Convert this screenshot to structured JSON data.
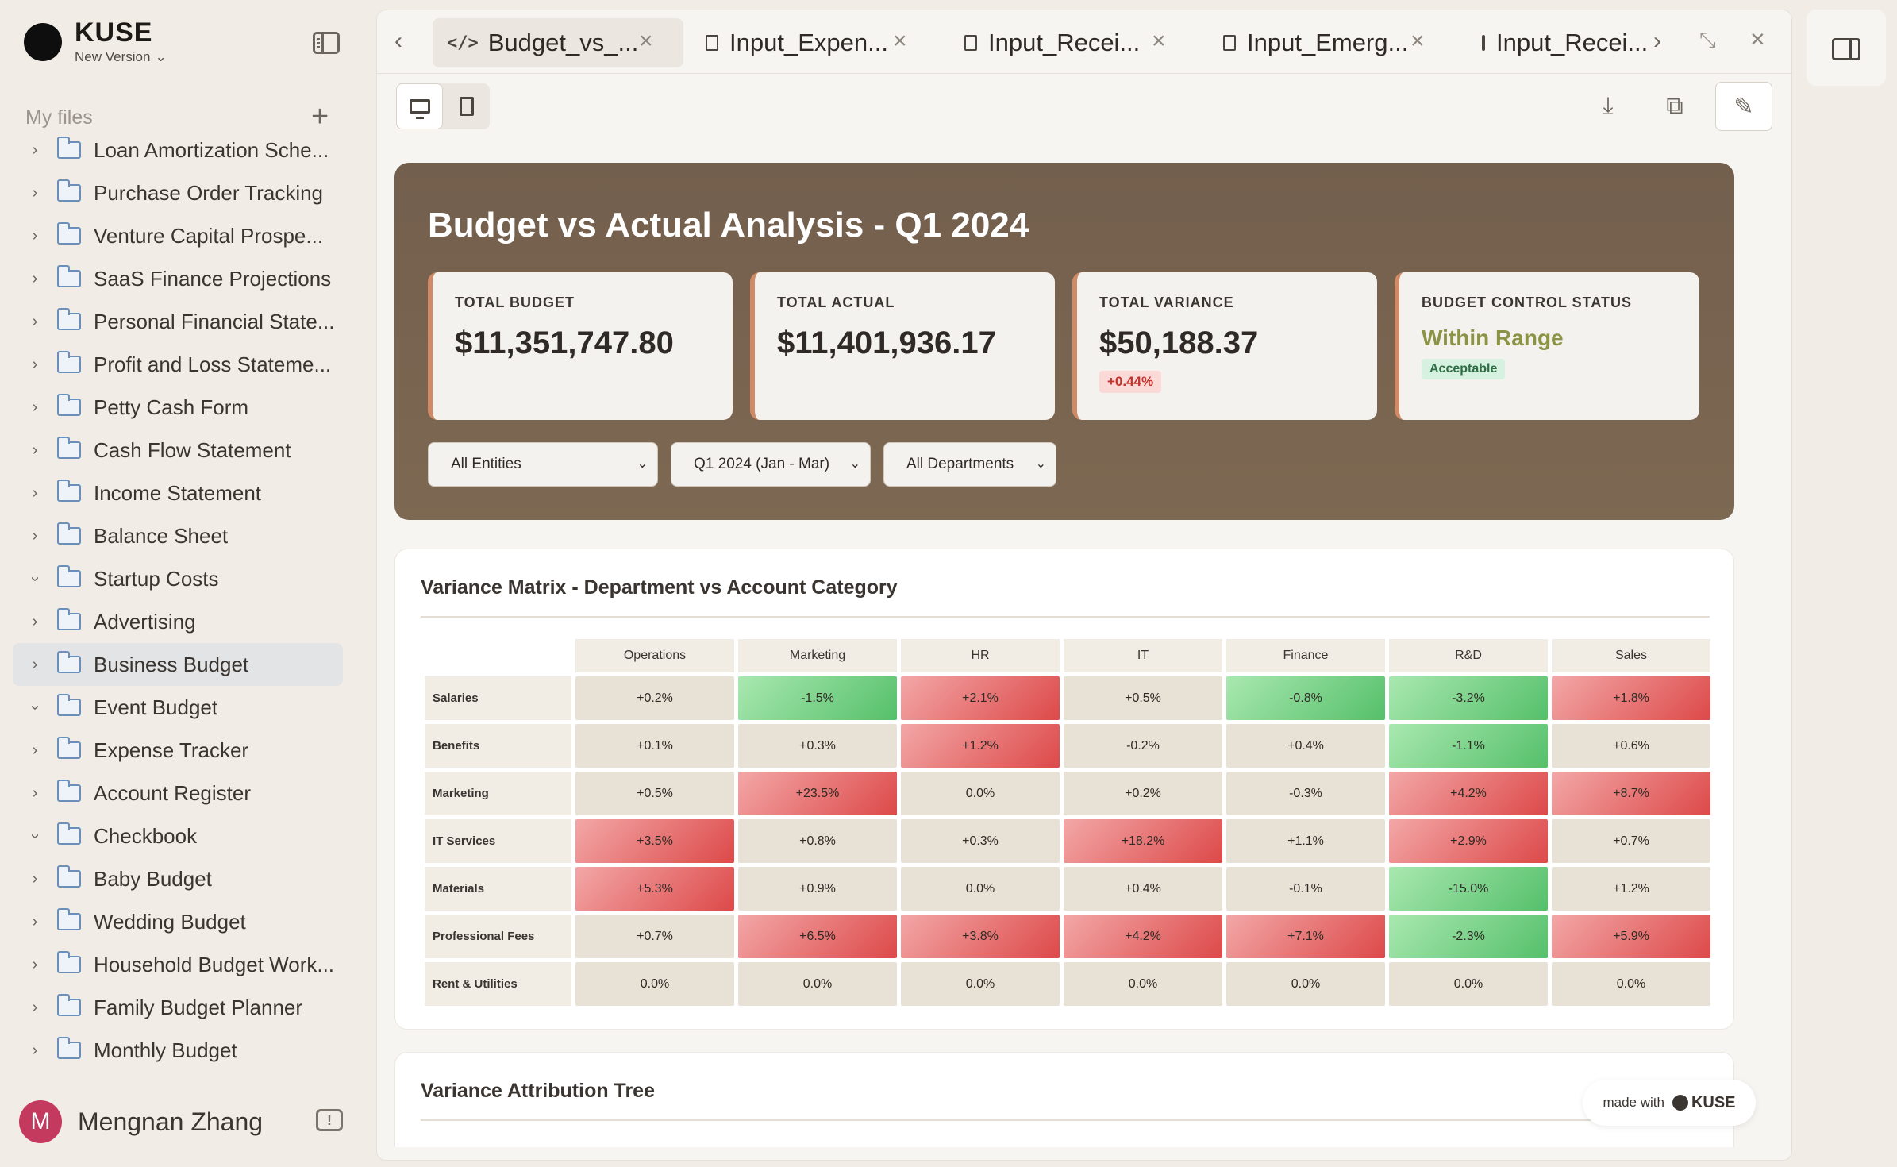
{
  "brand": {
    "name": "KUSE",
    "version": "New Version"
  },
  "sidebar": {
    "section_label": "My files",
    "items": [
      {
        "label": "Loan Amortization Sche...",
        "expanded": false
      },
      {
        "label": "Purchase Order Tracking",
        "expanded": false
      },
      {
        "label": "Venture Capital Prospe...",
        "expanded": false
      },
      {
        "label": "SaaS Finance Projections",
        "expanded": false
      },
      {
        "label": "Personal Financial State...",
        "expanded": false
      },
      {
        "label": "Profit and Loss Stateme...",
        "expanded": false
      },
      {
        "label": "Petty Cash Form",
        "expanded": false
      },
      {
        "label": "Cash Flow Statement",
        "expanded": false
      },
      {
        "label": "Income Statement",
        "expanded": false
      },
      {
        "label": "Balance Sheet",
        "expanded": false
      },
      {
        "label": "Startup Costs",
        "expanded": true
      },
      {
        "label": "Advertising",
        "expanded": false
      },
      {
        "label": "Business Budget",
        "expanded": false,
        "active": true
      },
      {
        "label": "Event Budget",
        "expanded": true
      },
      {
        "label": "Expense Tracker",
        "expanded": false
      },
      {
        "label": "Account Register",
        "expanded": false
      },
      {
        "label": "Checkbook",
        "expanded": true
      },
      {
        "label": "Baby Budget",
        "expanded": false
      },
      {
        "label": "Wedding Budget",
        "expanded": false
      },
      {
        "label": "Household Budget Work...",
        "expanded": false
      },
      {
        "label": "Family Budget Planner",
        "expanded": false
      },
      {
        "label": "Monthly Budget",
        "expanded": false
      }
    ]
  },
  "user": {
    "initial": "M",
    "name": "Mengnan Zhang"
  },
  "tabs": [
    {
      "title": "Budget_vs_...",
      "kind": "code",
      "active": true
    },
    {
      "title": "Input_Expen...",
      "kind": "doc"
    },
    {
      "title": "Input_Recei...",
      "kind": "doc"
    },
    {
      "title": "Input_Emerg...",
      "kind": "doc"
    },
    {
      "title": "Input_Recei...",
      "kind": "doc"
    }
  ],
  "report": {
    "title": "Budget vs Actual Analysis - Q1 2024",
    "kpis": {
      "total_budget": {
        "label": "TOTAL BUDGET",
        "value": "$11,351,747.80"
      },
      "total_actual": {
        "label": "TOTAL ACTUAL",
        "value": "$11,401,936.17"
      },
      "total_variance": {
        "label": "TOTAL VARIANCE",
        "value": "$50,188.37",
        "badge": "+0.44%"
      },
      "control_status": {
        "label": "BUDGET CONTROL STATUS",
        "value": "Within Range",
        "badge": "Acceptable"
      }
    },
    "filters": {
      "entity": "All Entities",
      "period": "Q1 2024 (Jan - Mar)",
      "department": "All Departments"
    }
  },
  "matrix": {
    "title": "Variance Matrix - Department vs Account Category",
    "columns": [
      "Operations",
      "Marketing",
      "HR",
      "IT",
      "Finance",
      "R&D",
      "Sales"
    ],
    "rows": [
      {
        "label": "Salaries",
        "cells": [
          "+0.2%",
          "-1.5%",
          "+2.1%",
          "+0.5%",
          "-0.8%",
          "-3.2%",
          "+1.8%"
        ],
        "tones": [
          "n",
          "g",
          "r",
          "n",
          "g",
          "g",
          "r"
        ]
      },
      {
        "label": "Benefits",
        "cells": [
          "+0.1%",
          "+0.3%",
          "+1.2%",
          "-0.2%",
          "+0.4%",
          "-1.1%",
          "+0.6%"
        ],
        "tones": [
          "n",
          "n",
          "r",
          "n",
          "n",
          "g",
          "n"
        ]
      },
      {
        "label": "Marketing",
        "cells": [
          "+0.5%",
          "+23.5%",
          "0.0%",
          "+0.2%",
          "-0.3%",
          "+4.2%",
          "+8.7%"
        ],
        "tones": [
          "n",
          "r",
          "n",
          "n",
          "n",
          "r",
          "r"
        ]
      },
      {
        "label": "IT Services",
        "cells": [
          "+3.5%",
          "+0.8%",
          "+0.3%",
          "+18.2%",
          "+1.1%",
          "+2.9%",
          "+0.7%"
        ],
        "tones": [
          "r",
          "n",
          "n",
          "r",
          "n",
          "r",
          "n"
        ]
      },
      {
        "label": "Materials",
        "cells": [
          "+5.3%",
          "+0.9%",
          "0.0%",
          "+0.4%",
          "-0.1%",
          "-15.0%",
          "+1.2%"
        ],
        "tones": [
          "r",
          "n",
          "n",
          "n",
          "n",
          "g",
          "n"
        ]
      },
      {
        "label": "Professional Fees",
        "cells": [
          "+0.7%",
          "+6.5%",
          "+3.8%",
          "+4.2%",
          "+7.1%",
          "-2.3%",
          "+5.9%"
        ],
        "tones": [
          "n",
          "r",
          "r",
          "r",
          "r",
          "g",
          "r"
        ]
      },
      {
        "label": "Rent & Utilities",
        "cells": [
          "0.0%",
          "0.0%",
          "0.0%",
          "0.0%",
          "0.0%",
          "0.0%",
          "0.0%"
        ],
        "tones": [
          "n",
          "n",
          "n",
          "n",
          "n",
          "n",
          "n"
        ]
      }
    ]
  },
  "tree": {
    "title": "Variance Attribution Tree"
  },
  "made_with": {
    "prefix": "made with",
    "brand": "KUSE"
  },
  "colors": {
    "hero": "#735f4d",
    "accent_border": "#d08a66",
    "positive_variance": "#dd4949",
    "negative_variance": "#55c06a",
    "status_ok": "#8b9346"
  }
}
